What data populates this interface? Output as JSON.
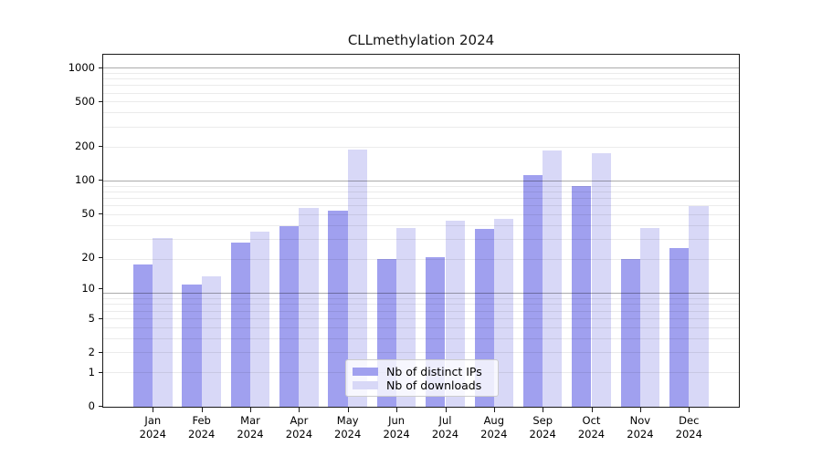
{
  "title": "CLLmethylation 2024",
  "legend": {
    "items": [
      {
        "label": "Nb of distinct IPs",
        "color": "#a0a0ef"
      },
      {
        "label": "Nb of downloads",
        "color": "#d8d8f7"
      }
    ]
  },
  "chart_data": {
    "type": "bar",
    "title": "CLLmethylation 2024",
    "categories": [
      "Jan 2024",
      "Feb 2024",
      "Mar 2024",
      "Apr 2024",
      "May 2024",
      "Jun 2024",
      "Jul 2024",
      "Aug 2024",
      "Sep 2024",
      "Oct 2024",
      "Nov 2024",
      "Dec 2024"
    ],
    "series": [
      {
        "name": "Nb of distinct IPs",
        "color": "#a0a0ef",
        "values": [
          17,
          11,
          27,
          38,
          53,
          19,
          20,
          36,
          110,
          88,
          19,
          24
        ]
      },
      {
        "name": "Nb of downloads",
        "color": "#d8d8f7",
        "values": [
          30,
          13,
          34,
          56,
          188,
          37,
          43,
          45,
          185,
          175,
          37,
          58
        ]
      }
    ],
    "xlabel": "",
    "ylabel": "",
    "yscale": "log(value+1)",
    "y_ticks": [
      1000,
      500,
      200,
      100,
      50,
      20,
      10,
      5,
      2,
      1,
      0
    ],
    "ylim": [
      0,
      1300
    ],
    "grid": "both-horizontal",
    "grid_major_color": "#ababab",
    "grid_minor_color": "#ececec",
    "legend_position": "lower center"
  }
}
